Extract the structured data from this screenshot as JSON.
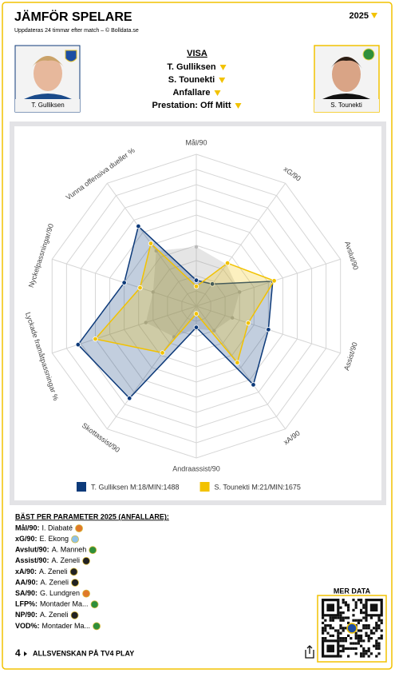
{
  "header": {
    "title": "JÄMFÖR SPELARE",
    "subtitle": "Uppdateras 24 timmar efter match – © Bolldata.se",
    "year": "2025"
  },
  "players": [
    "T. Gulliksen",
    "S. Tounekti"
  ],
  "selectors": {
    "heading": "VISA",
    "items": [
      "T. Gulliksen",
      "S. Tounekti",
      "Anfallare",
      "Prestation: Off Mitt"
    ]
  },
  "chart_data": {
    "type": "radar",
    "categories": [
      "Mål/90",
      "xG/90",
      "Avslut/90",
      "Assist/90",
      "xA/90",
      "Andraassist/90",
      "Skottassist/90",
      "Lyckade framåtpassningar %",
      "Nyckelpassningar/90",
      "Vunna offensiva dueller %"
    ],
    "rlim": [
      0,
      10
    ],
    "rticks": [
      1,
      2,
      3,
      4,
      5,
      6,
      7,
      8,
      9,
      10
    ],
    "grid": true,
    "series": [
      {
        "color": "#999999",
        "values": [
          3.9,
          3.4,
          3.0,
          2.5,
          2.0,
          1.5,
          2.5,
          3.5,
          3.0,
          4.5
        ]
      },
      {
        "name": "T. Gulliksen M:18/MIN:1488",
        "color": "#0d3a7a",
        "values": [
          1.7,
          1.8,
          5.3,
          5.0,
          6.4,
          1.4,
          7.5,
          8.2,
          5.0,
          6.5
        ]
      },
      {
        "name": "S. Tounekti M:21/MIN:1675",
        "color": "#f2c200",
        "values": [
          1.3,
          3.5,
          5.4,
          3.6,
          4.6,
          0.5,
          3.8,
          7.0,
          3.9,
          5.1
        ]
      }
    ]
  },
  "best": {
    "title": "BÄST PER PARAMETER 2025 (ANFALLARE):",
    "rows": [
      {
        "label": "Mål/90:",
        "player": "I. Diabaté"
      },
      {
        "label": "xG/90:",
        "player": "E. Ekong"
      },
      {
        "label": "Avslut/90:",
        "player": "A. Manneh"
      },
      {
        "label": "Assist/90:",
        "player": "A. Zeneli"
      },
      {
        "label": "xA/90:",
        "player": "A. Zeneli"
      },
      {
        "label": "AA/90:",
        "player": "A. Zeneli"
      },
      {
        "label": "SA/90:",
        "player": "G. Lundgren"
      },
      {
        "label": "LFP%:",
        "player": "Montader Ma..."
      },
      {
        "label": "NP/90:",
        "player": "A. Zeneli"
      },
      {
        "label": "VOD%:",
        "player": "Montader Ma..."
      }
    ]
  },
  "footer": {
    "logo": "4",
    "text": "ALLSVENSKAN PÅ TV4 PLAY",
    "more": "MER DATA"
  }
}
